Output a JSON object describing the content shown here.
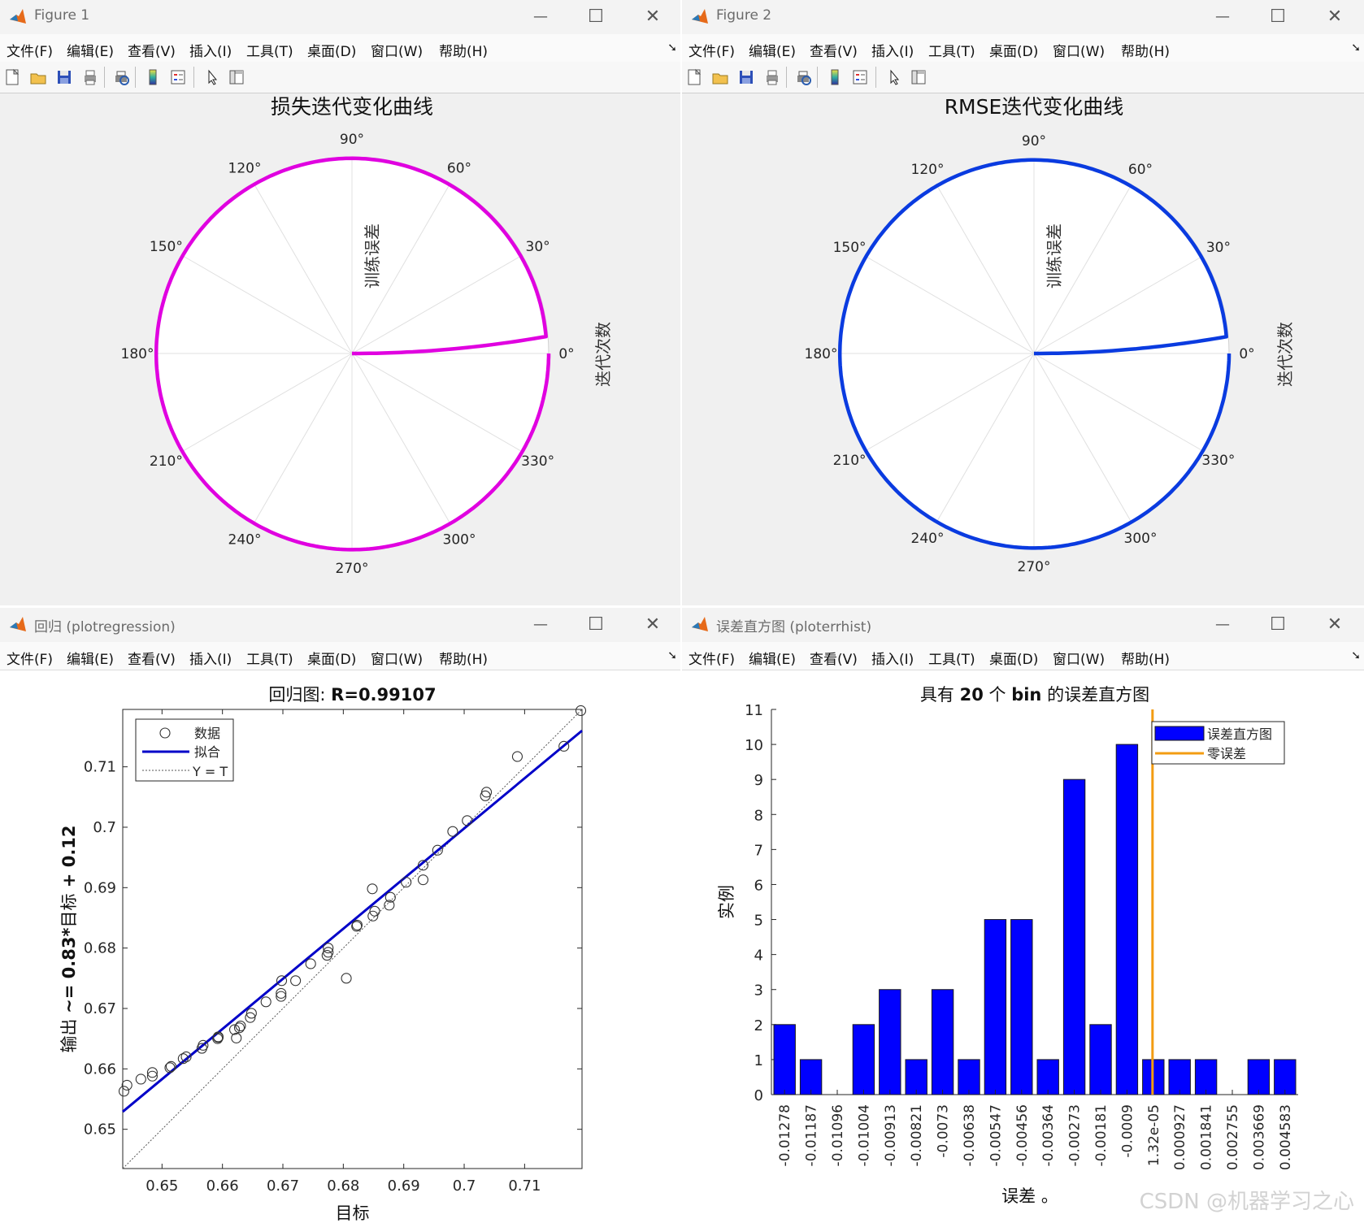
{
  "menu_items": [
    "文件(F)",
    "编辑(E)",
    "查看(V)",
    "插入(I)",
    "工具(T)",
    "桌面(D)",
    "窗口(W)",
    "帮助(H)"
  ],
  "icons": [
    "new-file-icon",
    "open-folder-icon",
    "save-icon",
    "print-icon",
    "print-preview-icon",
    "colorbar-icon",
    "legend-icon",
    "pointer-icon",
    "property-editor-icon"
  ],
  "window_controls": {
    "minimize": "—",
    "maximize": "☐",
    "close": "✕"
  },
  "colors": {
    "loss_curve": "#e000e0",
    "rmse_curve": "#0a3be0",
    "fit_line": "#0000c8",
    "hist_bar": "#0000ff",
    "zero_line": "#f39c12"
  },
  "fig1": {
    "window_title": "Figure 1",
    "chart_data": {
      "type": "polar-line",
      "title": "损失迭代变化曲线",
      "radial_label": "训练误差",
      "angular_label": "迭代次数",
      "theta_ticks": [
        "0°",
        "30°",
        "60°",
        "90°",
        "120°",
        "150°",
        "180°",
        "210°",
        "240°",
        "270°",
        "300°",
        "330°"
      ],
      "curve": "trace spiral from 0° at center to outer rim, full revolution",
      "color": "#e000e0"
    }
  },
  "fig2": {
    "window_title": "Figure 2",
    "chart_data": {
      "type": "polar-line",
      "title": "RMSE迭代变化曲线",
      "radial_label": "训练误差",
      "angular_label": "迭代次数",
      "theta_ticks": [
        "0°",
        "30°",
        "60°",
        "90°",
        "120°",
        "150°",
        "180°",
        "210°",
        "240°",
        "270°",
        "300°",
        "330°"
      ],
      "color": "#0a3be0"
    }
  },
  "fig3": {
    "window_title": "回归 (plotregression)",
    "chart_data": {
      "type": "scatter",
      "title_prefix": "回归图: ",
      "title_value": "R=0.99107",
      "xlabel": "目标",
      "ylabel_prefix": "输出 ",
      "ylabel_formula": "~= 0.83*",
      "ylabel_mid": "目标",
      "ylabel_suffix": " + 0.12",
      "xlim": [
        0.6435,
        0.7195
      ],
      "ylim": [
        0.6435,
        0.7195
      ],
      "x_ticks": [
        "0.65",
        "0.66",
        "0.67",
        "0.68",
        "0.69",
        "0.7",
        "0.71"
      ],
      "y_ticks": [
        "0.65",
        "0.66",
        "0.67",
        "0.68",
        "0.69",
        "0.7",
        "0.71"
      ],
      "legend": [
        "数据",
        "拟合",
        "Y = T"
      ],
      "fit": {
        "slope": 0.83,
        "intercept": 0.1188
      },
      "points": [
        [
          0.6437,
          0.6563
        ],
        [
          0.6442,
          0.6573
        ],
        [
          0.6465,
          0.6583
        ],
        [
          0.6484,
          0.6588
        ],
        [
          0.6484,
          0.6594
        ],
        [
          0.6513,
          0.6602
        ],
        [
          0.6515,
          0.6604
        ],
        [
          0.6535,
          0.6617
        ],
        [
          0.654,
          0.662
        ],
        [
          0.6566,
          0.6634
        ],
        [
          0.6568,
          0.6639
        ],
        [
          0.6592,
          0.665
        ],
        [
          0.6593,
          0.6652
        ],
        [
          0.6593,
          0.6653
        ],
        [
          0.662,
          0.6665
        ],
        [
          0.6623,
          0.6651
        ],
        [
          0.6628,
          0.6668
        ],
        [
          0.663,
          0.6671
        ],
        [
          0.6646,
          0.6685
        ],
        [
          0.6648,
          0.6692
        ],
        [
          0.6672,
          0.6711
        ],
        [
          0.6697,
          0.672
        ],
        [
          0.6697,
          0.6725
        ],
        [
          0.6698,
          0.6746
        ],
        [
          0.6721,
          0.6746
        ],
        [
          0.6746,
          0.6774
        ],
        [
          0.6773,
          0.6788
        ],
        [
          0.6775,
          0.6793
        ],
        [
          0.6775,
          0.68
        ],
        [
          0.6805,
          0.675
        ],
        [
          0.6822,
          0.6836
        ],
        [
          0.6823,
          0.6838
        ],
        [
          0.6849,
          0.6853
        ],
        [
          0.6852,
          0.6861
        ],
        [
          0.6848,
          0.6898
        ],
        [
          0.6876,
          0.6871
        ],
        [
          0.6878,
          0.6884
        ],
        [
          0.6904,
          0.6909
        ],
        [
          0.6932,
          0.6913
        ],
        [
          0.6932,
          0.6937
        ],
        [
          0.6956,
          0.6962
        ],
        [
          0.6981,
          0.6993
        ],
        [
          0.7005,
          0.7011
        ],
        [
          0.7035,
          0.7052
        ],
        [
          0.7037,
          0.7058
        ],
        [
          0.7088,
          0.7117
        ],
        [
          0.7165,
          0.7134
        ],
        [
          0.7193,
          0.7193
        ]
      ]
    }
  },
  "fig4": {
    "window_title": "误差直方图 (ploterrhist)",
    "chart_data": {
      "type": "bar",
      "title_prefix": "具有 ",
      "title_num": "20",
      "title_mid": " 个 ",
      "title_bin": "bin",
      "title_suffix": " 的误差直方图",
      "xlabel": "误差 。",
      "ylabel": "实例",
      "ylim": [
        0,
        11
      ],
      "y_ticks": [
        "0",
        "1",
        "2",
        "3",
        "4",
        "5",
        "6",
        "7",
        "8",
        "9",
        "10",
        "11"
      ],
      "categories": [
        "-0.01278",
        "-0.01187",
        "-0.01096",
        "-0.01004",
        "-0.00913",
        "-0.00821",
        "-0.0073",
        "-0.00638",
        "-0.00547",
        "-0.00456",
        "-0.00364",
        "-0.00273",
        "-0.00181",
        "-0.0009",
        "1.32e-05",
        "0.000927",
        "0.001841",
        "0.002755",
        "0.003669",
        "0.004583"
      ],
      "values": [
        2,
        1,
        0,
        2,
        3,
        1,
        3,
        1,
        5,
        5,
        1,
        9,
        2,
        10,
        1,
        1,
        1,
        0,
        1,
        1
      ],
      "zero_error_index": 14,
      "legend": [
        "误差直方图",
        "零误差"
      ]
    }
  },
  "watermark": "CSDN @机器学习之心"
}
